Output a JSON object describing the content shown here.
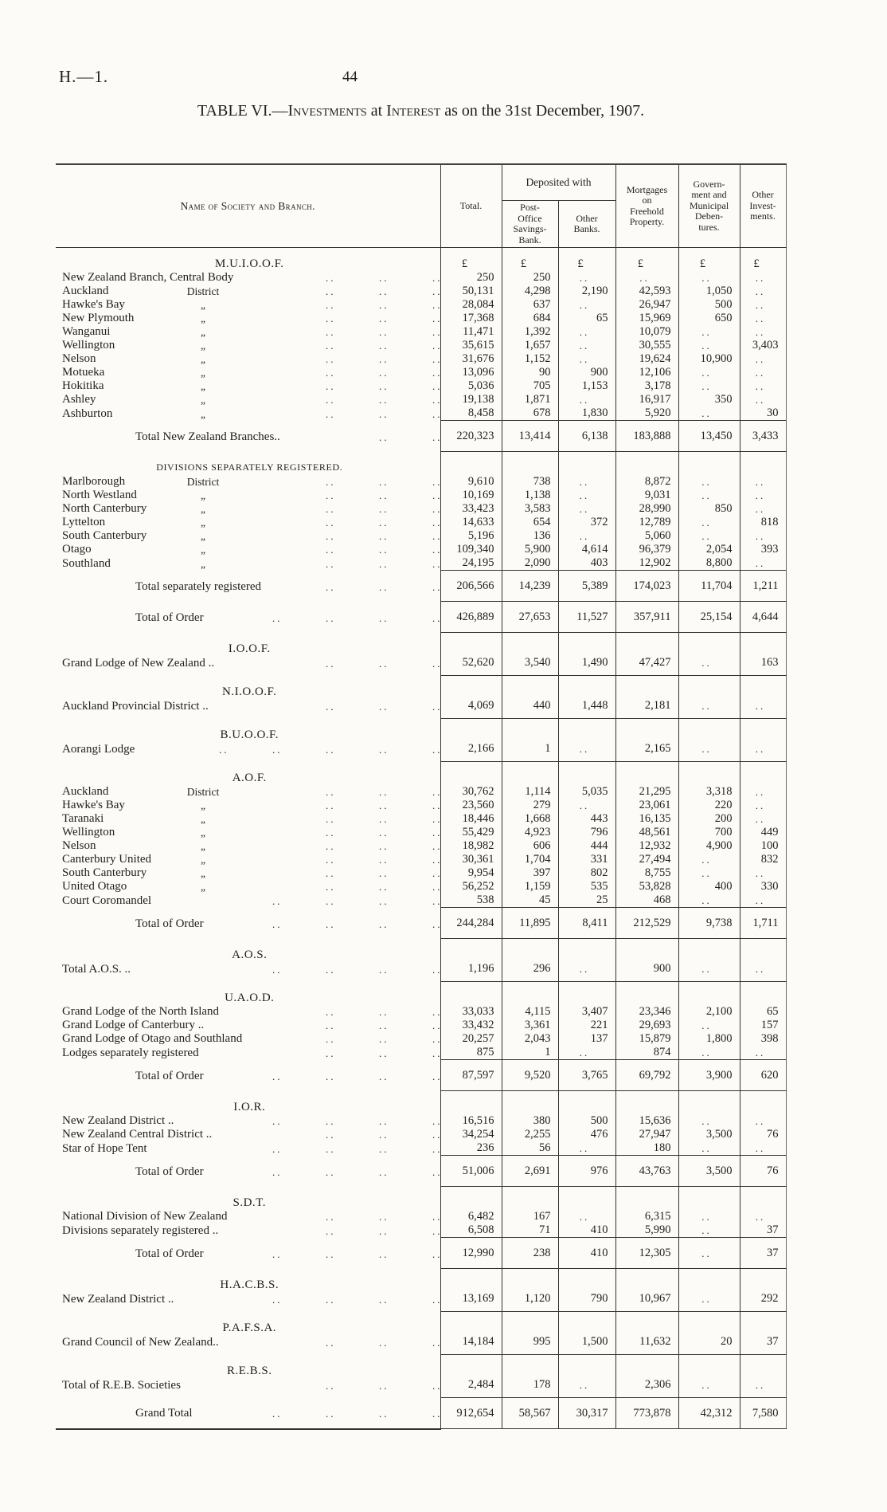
{
  "page": {
    "doc_code": "H.—1.",
    "page_number": "44"
  },
  "title": {
    "lead": "TABLE VI.—",
    "sc1": "Investments",
    "mid": " at ",
    "sc2": "Interest",
    "tail": " as on the 31st December, 1907."
  },
  "table": {
    "header": {
      "name": "Name of Society and Branch.",
      "total": "Total.",
      "deposited": "Deposited with",
      "post_office": "Post-\nOffice\nSavings-\nBank.",
      "other_banks": "Other\nBanks.",
      "mortgages": "Mortgages\non\nFreehold\nProperty.",
      "debentures": "Govern-\nment and\nMunicipal\nDeben-\ntures.",
      "other_investments": "Other\nInvest-\nments."
    },
    "currency_symbol": "£",
    "rows": [
      {
        "t": "sec",
        "label": "M.U.I.O.O.F.",
        "values": [
          "£",
          "£",
          "£",
          "£",
          "£",
          "£"
        ]
      },
      {
        "t": "data",
        "label": "New Zealand Branch, Central Body",
        "ditto": "",
        "dots": 3,
        "values": [
          "250",
          "250",
          "..",
          "..",
          "..",
          ".."
        ]
      },
      {
        "t": "data",
        "label": "Auckland",
        "ditto": "District",
        "dots": 3,
        "values": [
          "50,131",
          "4,298",
          "2,190",
          "42,593",
          "1,050",
          ".."
        ]
      },
      {
        "t": "data",
        "label": "Hawke's Bay",
        "ditto": "„",
        "dots": 3,
        "values": [
          "28,084",
          "637",
          "..",
          "26,947",
          "500",
          ".."
        ]
      },
      {
        "t": "data",
        "label": "New Plymouth",
        "ditto": "„",
        "dots": 3,
        "values": [
          "17,368",
          "684",
          "65",
          "15,969",
          "650",
          ".."
        ]
      },
      {
        "t": "data",
        "label": "Wanganui",
        "ditto": "„",
        "dots": 3,
        "values": [
          "11,471",
          "1,392",
          "..",
          "10,079",
          "..",
          ".."
        ]
      },
      {
        "t": "data",
        "label": "Wellington",
        "ditto": "„",
        "dots": 3,
        "values": [
          "35,615",
          "1,657",
          "..",
          "30,555",
          "..",
          "3,403"
        ]
      },
      {
        "t": "data",
        "label": "Nelson",
        "ditto": "„",
        "dots": 3,
        "values": [
          "31,676",
          "1,152",
          "..",
          "19,624",
          "10,900",
          ".."
        ]
      },
      {
        "t": "data",
        "label": "Motueka",
        "ditto": "„",
        "dots": 3,
        "values": [
          "13,096",
          "90",
          "900",
          "12,106",
          "..",
          ".."
        ]
      },
      {
        "t": "data",
        "label": "Hokitika",
        "ditto": "„",
        "dots": 3,
        "values": [
          "5,036",
          "705",
          "1,153",
          "3,178",
          "..",
          ".."
        ]
      },
      {
        "t": "data",
        "label": "Ashley",
        "ditto": "„",
        "dots": 3,
        "values": [
          "19,138",
          "1,871",
          "..",
          "16,917",
          "350",
          ".."
        ]
      },
      {
        "t": "data",
        "label": "Ashburton",
        "ditto": "„",
        "dots": 3,
        "values": [
          "8,458",
          "678",
          "1,830",
          "5,920",
          "..",
          "30"
        ]
      },
      {
        "t": "total",
        "label": "Total New Zealand Branches..",
        "dots": 2,
        "rules": "tb",
        "values": [
          "220,323",
          "13,414",
          "6,138",
          "183,888",
          "13,450",
          "3,433"
        ]
      },
      {
        "t": "sec",
        "small": true,
        "label": "DIVISIONS SEPARATELY REGISTERED."
      },
      {
        "t": "data",
        "label": "Marlborough",
        "ditto": "District",
        "dots": 3,
        "values": [
          "9,610",
          "738",
          "..",
          "8,872",
          "..",
          ".."
        ]
      },
      {
        "t": "data",
        "label": "North Westland",
        "ditto": "„",
        "dots": 3,
        "values": [
          "10,169",
          "1,138",
          "..",
          "9,031",
          "..",
          ".."
        ]
      },
      {
        "t": "data",
        "label": "North Canterbury",
        "ditto": "„",
        "dots": 3,
        "values": [
          "33,423",
          "3,583",
          "..",
          "28,990",
          "850",
          ".."
        ]
      },
      {
        "t": "data",
        "label": "Lyttelton",
        "ditto": "„",
        "dots": 3,
        "values": [
          "14,633",
          "654",
          "372",
          "12,789",
          "..",
          "818"
        ]
      },
      {
        "t": "data",
        "label": "South Canterbury",
        "ditto": "„",
        "dots": 3,
        "values": [
          "5,196",
          "136",
          "..",
          "5,060",
          "..",
          ".."
        ]
      },
      {
        "t": "data",
        "label": "Otago",
        "ditto": "„",
        "dots": 3,
        "values": [
          "109,340",
          "5,900",
          "4,614",
          "96,379",
          "2,054",
          "393"
        ]
      },
      {
        "t": "data",
        "label": "Southland",
        "ditto": "„",
        "dots": 3,
        "values": [
          "24,195",
          "2,090",
          "403",
          "12,902",
          "8,800",
          ".."
        ]
      },
      {
        "t": "total",
        "label": "Total separately registered",
        "dots": 3,
        "rules": "tb",
        "values": [
          "206,566",
          "14,239",
          "5,389",
          "174,023",
          "11,704",
          "1,211"
        ]
      },
      {
        "t": "total",
        "label": "Total of Order",
        "dots": 4,
        "rules": "tb",
        "values": [
          "426,889",
          "27,653",
          "11,527",
          "357,911",
          "25,154",
          "4,644"
        ]
      },
      {
        "t": "sec",
        "label": "I.O.O.F."
      },
      {
        "t": "data",
        "label": "Grand Lodge of New Zealand ..",
        "dots": 3,
        "rules": "b",
        "values": [
          "52,620",
          "3,540",
          "1,490",
          "47,427",
          "..",
          "163"
        ]
      },
      {
        "t": "sec",
        "label": "N.I.O.O.F."
      },
      {
        "t": "data",
        "label": "Auckland Provincial District ..",
        "dots": 3,
        "rules": "b",
        "values": [
          "4,069",
          "440",
          "1,448",
          "2,181",
          "..",
          ".."
        ]
      },
      {
        "t": "sec",
        "label": "B.U.O.O.F."
      },
      {
        "t": "data",
        "label": "Aorangi Lodge",
        "dots": 5,
        "rules": "b",
        "values": [
          "2,166",
          "1",
          "..",
          "2,165",
          "..",
          ".."
        ]
      },
      {
        "t": "sec",
        "label": "A.O.F."
      },
      {
        "t": "data",
        "label": "Auckland",
        "ditto": "District",
        "dots": 3,
        "values": [
          "30,762",
          "1,114",
          "5,035",
          "21,295",
          "3,318",
          ".."
        ]
      },
      {
        "t": "data",
        "label": "Hawke's Bay",
        "ditto": "„",
        "dots": 3,
        "values": [
          "23,560",
          "279",
          "..",
          "23,061",
          "220",
          ".."
        ]
      },
      {
        "t": "data",
        "label": "Taranaki",
        "ditto": "„",
        "dots": 3,
        "values": [
          "18,446",
          "1,668",
          "443",
          "16,135",
          "200",
          ".."
        ]
      },
      {
        "t": "data",
        "label": "Wellington",
        "ditto": "„",
        "dots": 3,
        "values": [
          "55,429",
          "4,923",
          "796",
          "48,561",
          "700",
          "449"
        ]
      },
      {
        "t": "data",
        "label": "Nelson",
        "ditto": "„",
        "dots": 3,
        "values": [
          "18,982",
          "606",
          "444",
          "12,932",
          "4,900",
          "100"
        ]
      },
      {
        "t": "data",
        "label": "Canterbury United",
        "ditto": "„",
        "dots": 3,
        "values": [
          "30,361",
          "1,704",
          "331",
          "27,494",
          "..",
          "832"
        ]
      },
      {
        "t": "data",
        "label": "South Canterbury",
        "ditto": "„",
        "dots": 3,
        "values": [
          "9,954",
          "397",
          "802",
          "8,755",
          "..",
          ".."
        ]
      },
      {
        "t": "data",
        "label": "United Otago",
        "ditto": "„",
        "dots": 3,
        "values": [
          "56,252",
          "1,159",
          "535",
          "53,828",
          "400",
          "330"
        ]
      },
      {
        "t": "data",
        "label": "Court Coromandel",
        "dots": 4,
        "values": [
          "538",
          "45",
          "25",
          "468",
          "..",
          ".."
        ]
      },
      {
        "t": "total",
        "label": "Total of Order",
        "dots": 4,
        "rules": "tb",
        "values": [
          "244,284",
          "11,895",
          "8,411",
          "212,529",
          "9,738",
          "1,711"
        ]
      },
      {
        "t": "sec",
        "label": "A.O.S."
      },
      {
        "t": "data",
        "label": "Total A.O.S. ..",
        "dots": 4,
        "rules": "b",
        "values": [
          "1,196",
          "296",
          "..",
          "900",
          "..",
          ".."
        ]
      },
      {
        "t": "sec",
        "label": "U.A.O.D."
      },
      {
        "t": "data",
        "label": "Grand Lodge of the North Island",
        "dots": 3,
        "values": [
          "33,033",
          "4,115",
          "3,407",
          "23,346",
          "2,100",
          "65"
        ]
      },
      {
        "t": "data",
        "label": "Grand Lodge of Canterbury ..",
        "dots": 3,
        "values": [
          "33,432",
          "3,361",
          "221",
          "29,693",
          "..",
          "157"
        ]
      },
      {
        "t": "data",
        "label": "Grand Lodge of Otago and Southland",
        "dots": 3,
        "values": [
          "20,257",
          "2,043",
          "137",
          "15,879",
          "1,800",
          "398"
        ]
      },
      {
        "t": "data",
        "label": "Lodges separately registered",
        "dots": 3,
        "values": [
          "875",
          "1",
          "..",
          "874",
          "..",
          ".."
        ]
      },
      {
        "t": "total",
        "label": "Total of Order",
        "dots": 4,
        "rules": "tb",
        "values": [
          "87,597",
          "9,520",
          "3,765",
          "69,792",
          "3,900",
          "620"
        ]
      },
      {
        "t": "sec",
        "label": "I.O.R."
      },
      {
        "t": "data",
        "label": "New Zealand District ..",
        "dots": 4,
        "values": [
          "16,516",
          "380",
          "500",
          "15,636",
          "..",
          ".."
        ]
      },
      {
        "t": "data",
        "label": "New Zealand Central District ..",
        "dots": 3,
        "values": [
          "34,254",
          "2,255",
          "476",
          "27,947",
          "3,500",
          "76"
        ]
      },
      {
        "t": "data",
        "label": "Star of Hope Tent",
        "dots": 4,
        "values": [
          "236",
          "56",
          "..",
          "180",
          "..",
          ".."
        ]
      },
      {
        "t": "total",
        "label": "Total of Order",
        "dots": 4,
        "rules": "tb",
        "values": [
          "51,006",
          "2,691",
          "976",
          "43,763",
          "3,500",
          "76"
        ]
      },
      {
        "t": "sec",
        "label": "S.D.T."
      },
      {
        "t": "data",
        "label": "National Division of New Zealand",
        "dots": 3,
        "values": [
          "6,482",
          "167",
          "..",
          "6,315",
          "..",
          ".."
        ]
      },
      {
        "t": "data",
        "label": "Divisions separately registered ..",
        "dots": 3,
        "values": [
          "6,508",
          "71",
          "410",
          "5,990",
          "..",
          "37"
        ]
      },
      {
        "t": "total",
        "label": "Total of Order",
        "dots": 4,
        "rules": "tb",
        "values": [
          "12,990",
          "238",
          "410",
          "12,305",
          "..",
          "37"
        ]
      },
      {
        "t": "sec",
        "label": "H.A.C.B.S."
      },
      {
        "t": "data",
        "label": "New Zealand District ..",
        "dots": 4,
        "rules": "b",
        "values": [
          "13,169",
          "1,120",
          "790",
          "10,967",
          "..",
          "292"
        ]
      },
      {
        "t": "sec",
        "label": "P.A.F.S.A."
      },
      {
        "t": "data",
        "label": "Grand Council of New Zealand..",
        "dots": 3,
        "rules": "b",
        "values": [
          "14,184",
          "995",
          "1,500",
          "11,632",
          "20",
          "37"
        ]
      },
      {
        "t": "sec",
        "label": "R.E.B.S."
      },
      {
        "t": "data",
        "label": "Total of R.E.B. Societies",
        "dots": 3,
        "rules": "b",
        "values": [
          "2,484",
          "178",
          "..",
          "2,306",
          "..",
          ".."
        ]
      },
      {
        "t": "grand",
        "label": "Grand Total",
        "dots": 4,
        "rules": "tb",
        "values": [
          "912,654",
          "58,567",
          "30,317",
          "773,878",
          "42,312",
          "7,580"
        ]
      }
    ]
  }
}
